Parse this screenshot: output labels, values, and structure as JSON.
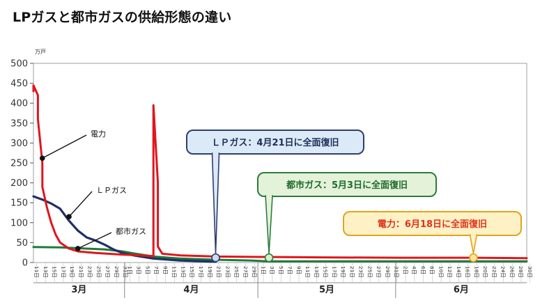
{
  "page": {
    "title": "LPガスと都市ガスの供給形態の違い"
  },
  "chart_data": {
    "type": "line",
    "title": "",
    "unit_label": "万戸",
    "xlabel": "",
    "ylabel": "",
    "ylim": [
      0,
      500
    ],
    "y_ticks": [
      0,
      50,
      100,
      150,
      200,
      250,
      300,
      350,
      400,
      450,
      500
    ],
    "grid": false,
    "months": [
      {
        "label": "3月",
        "days": [
          "11日",
          "13日",
          "15日",
          "17日",
          "19日",
          "21日",
          "23日",
          "25日",
          "27日",
          "29日",
          "31日"
        ]
      },
      {
        "label": "4月",
        "days": [
          "1日",
          "3日",
          "5日",
          "7日",
          "9日",
          "11日",
          "13日",
          "15日",
          "17日",
          "19日",
          "21日",
          "23日",
          "25日",
          "27日",
          "29日"
        ]
      },
      {
        "label": "5月",
        "days": [
          "1日",
          "3日",
          "5日",
          "7日",
          "9日",
          "11日",
          "13日",
          "15日",
          "17日",
          "19日",
          "21日",
          "23日",
          "25日",
          "27日",
          "29日",
          "31日"
        ]
      },
      {
        "label": "6月",
        "days": [
          "2日",
          "4日",
          "6日",
          "8日",
          "10日",
          "12日",
          "14日",
          "16日",
          "18日",
          "20日",
          "22日",
          "24日",
          "26日",
          "28日",
          "30日"
        ]
      }
    ],
    "series": [
      {
        "name": "電力",
        "color": "#e2141c",
        "points": [
          [
            "2011-03-11",
            430
          ],
          [
            "2011-03-11",
            445
          ],
          [
            "2011-03-12",
            420
          ],
          [
            "2011-03-12",
            360
          ],
          [
            "2011-03-13",
            250
          ],
          [
            "2011-03-13",
            190
          ],
          [
            "2011-03-14",
            140
          ],
          [
            "2011-03-15",
            100
          ],
          [
            "2011-03-16",
            70
          ],
          [
            "2011-03-17",
            50
          ],
          [
            "2011-03-19",
            35
          ],
          [
            "2011-03-21",
            28
          ],
          [
            "2011-03-25",
            24
          ],
          [
            "2011-03-31",
            20
          ],
          [
            "2011-04-04",
            18
          ],
          [
            "2011-04-07",
            16
          ],
          [
            "2011-04-07",
            390
          ],
          [
            "2011-04-07",
            395
          ],
          [
            "2011-04-08",
            200
          ],
          [
            "2011-04-08",
            40
          ],
          [
            "2011-04-09",
            22
          ],
          [
            "2011-04-13",
            18
          ],
          [
            "2011-04-21",
            15
          ],
          [
            "2011-05-01",
            14
          ],
          [
            "2011-05-15",
            13
          ],
          [
            "2011-06-01",
            12
          ],
          [
            "2011-06-18",
            12
          ],
          [
            "2011-06-30",
            11
          ]
        ]
      },
      {
        "name": "ＬＰガス",
        "color": "#1f2f66",
        "points": [
          [
            "2011-03-11",
            166
          ],
          [
            "2011-03-13",
            158
          ],
          [
            "2011-03-15",
            148
          ],
          [
            "2011-03-17",
            135
          ],
          [
            "2011-03-19",
            105
          ],
          [
            "2011-03-21",
            80
          ],
          [
            "2011-03-23",
            63
          ],
          [
            "2011-03-25",
            55
          ],
          [
            "2011-03-27",
            45
          ],
          [
            "2011-03-29",
            33
          ],
          [
            "2011-03-31",
            24
          ],
          [
            "2011-04-03",
            17
          ],
          [
            "2011-04-07",
            10
          ],
          [
            "2011-04-13",
            5
          ],
          [
            "2011-04-21",
            2
          ]
        ]
      },
      {
        "name": "都市ガス",
        "color": "#1e7a3c",
        "points": [
          [
            "2011-03-11",
            39
          ],
          [
            "2011-03-17",
            38
          ],
          [
            "2011-03-23",
            35
          ],
          [
            "2011-03-27",
            33
          ],
          [
            "2011-03-31",
            28
          ],
          [
            "2011-04-03",
            22
          ],
          [
            "2011-04-07",
            15
          ],
          [
            "2011-04-13",
            10
          ],
          [
            "2011-04-21",
            7
          ],
          [
            "2011-04-29",
            5
          ],
          [
            "2011-05-03",
            3
          ],
          [
            "2011-05-15",
            3
          ],
          [
            "2011-06-01",
            3
          ],
          [
            "2011-06-30",
            3
          ]
        ]
      }
    ],
    "series_labels": [
      {
        "series": "電力",
        "text": "電力",
        "anchor": [
          "2011-03-13",
          262
        ]
      },
      {
        "series": "ＬＰガス",
        "text": "ＬＰガス",
        "anchor": [
          "2011-03-19",
          115
        ]
      },
      {
        "series": "都市ガス",
        "text": "都市ガス",
        "anchor": [
          "2011-03-21",
          35
        ]
      }
    ],
    "annotations": [
      {
        "text": "ＬＰガス：4月21日に全面復旧",
        "date": "2011-04-21",
        "value": 12,
        "fill": "#dbeaf6",
        "stroke": "#2d3f6e",
        "text_color": "#1e2d5a",
        "marker_fill": "#c9dcf0"
      },
      {
        "text": "都市ガス：5月3日に全面復旧",
        "date": "2011-05-03",
        "value": 12,
        "fill": "#e3f2d9",
        "stroke": "#2e7b3b",
        "text_color": "#1e6a2c",
        "marker_fill": "#d6efcb"
      },
      {
        "text": "電力：6月18日に全面復旧",
        "date": "2011-06-18",
        "value": 12,
        "fill": "#fdf1c5",
        "stroke": "#e0a41a",
        "text_color": "#e0321a",
        "marker_fill": "#fbe59a"
      }
    ]
  }
}
